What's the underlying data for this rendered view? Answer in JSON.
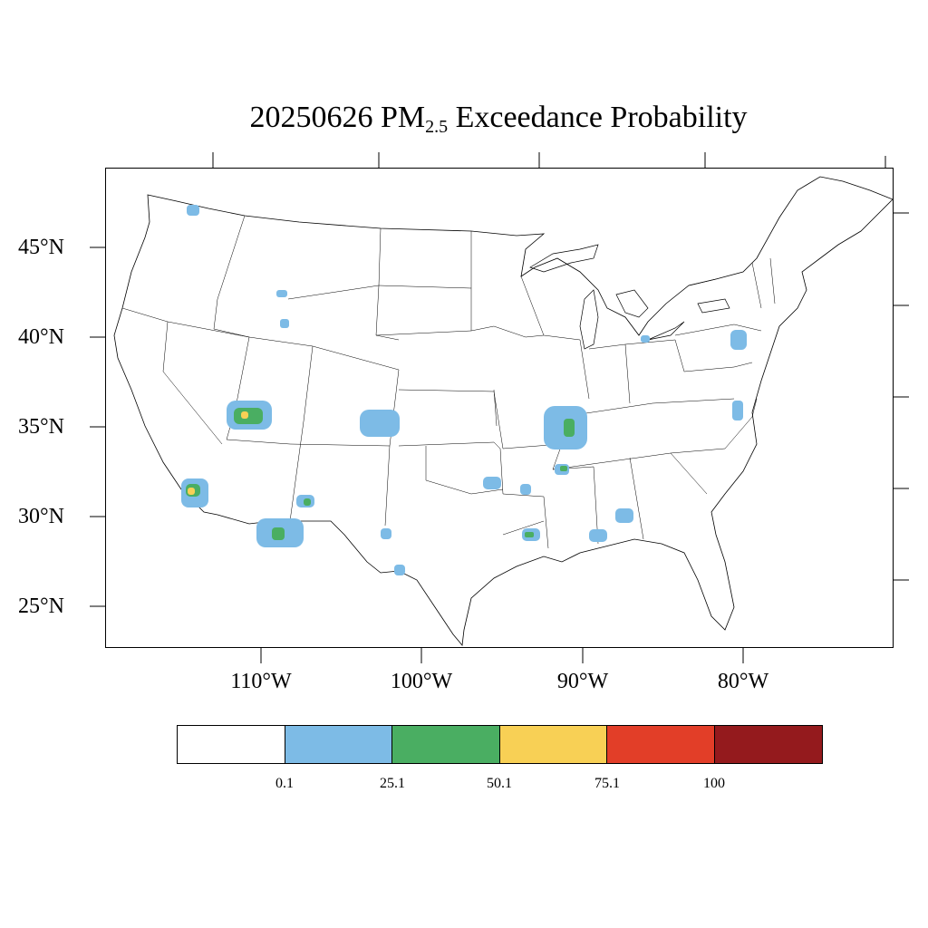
{
  "title": {
    "prefix": "20250626 PM",
    "subscript": "2.5",
    "suffix": " Exceedance Probability"
  },
  "lat_labels": [
    "45°N",
    "40°N",
    "35°N",
    "30°N",
    "25°N"
  ],
  "lon_labels": [
    "110°W",
    "100°W",
    "90°W",
    "80°W"
  ],
  "legend": {
    "colors": [
      "#ffffff",
      "#7dbbe6",
      "#4aae62",
      "#f8d055",
      "#e23e28",
      "#941a1d"
    ],
    "labels": [
      "0.1",
      "25.1",
      "50.1",
      "75.1",
      "100"
    ]
  },
  "colors": {
    "low": "#7dbbe6",
    "mid": "#4aae62",
    "high": "#f8d055"
  }
}
